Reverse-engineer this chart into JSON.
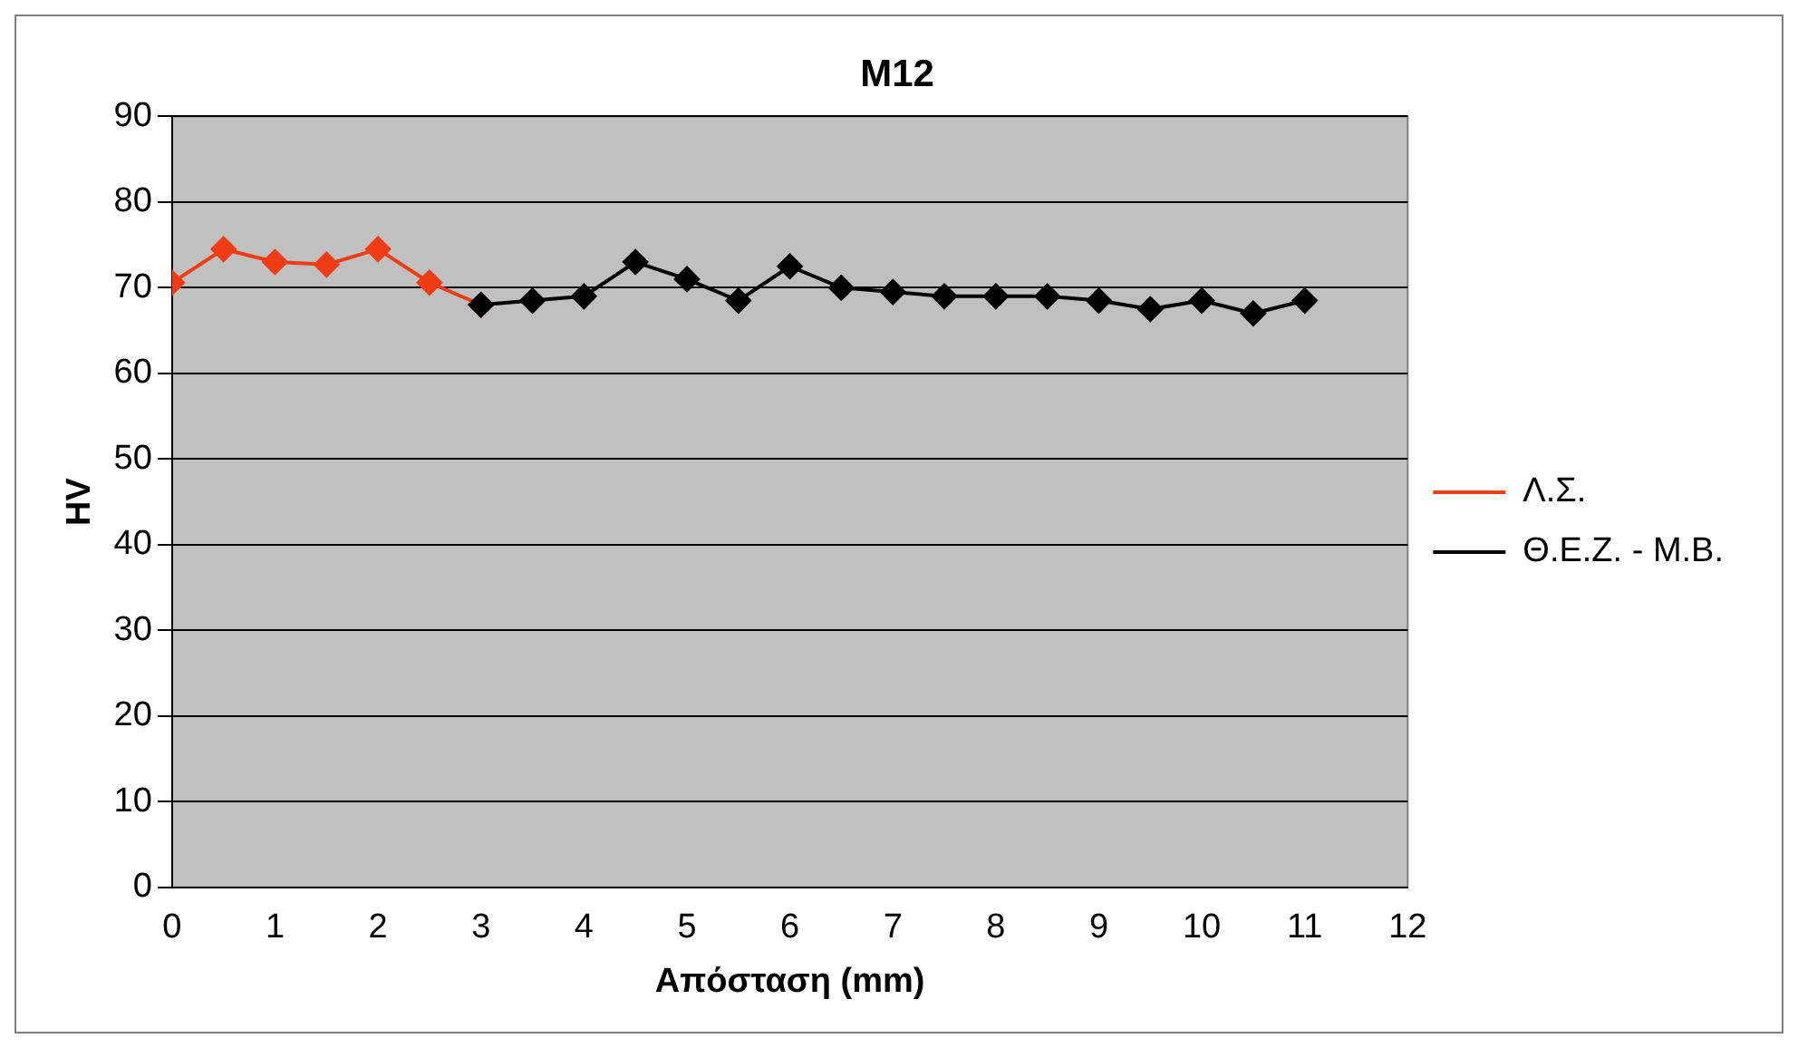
{
  "chart_data": {
    "type": "line",
    "title": "M12",
    "xlabel": "Απόσταση (mm)",
    "ylabel": "HV",
    "xlim": [
      0,
      12
    ],
    "xticks": [
      0,
      1,
      2,
      3,
      4,
      5,
      6,
      7,
      8,
      9,
      10,
      11,
      12
    ],
    "ylim": [
      0,
      90
    ],
    "yticks": [
      0,
      10,
      20,
      30,
      40,
      50,
      60,
      70,
      80,
      90
    ],
    "grid": "y",
    "legend": "right",
    "marker": "diamond",
    "series": [
      {
        "name": "Λ.Σ.",
        "color": "#f03c14",
        "x": [
          0,
          0.5,
          1,
          1.5,
          2,
          2.5,
          3
        ],
        "values": [
          70.6,
          74.5,
          73,
          72.7,
          74.5,
          70.6,
          68
        ]
      },
      {
        "name": "Θ.Ε.Ζ. - Μ.Β.",
        "color": "#000000",
        "x": [
          3,
          3.5,
          4,
          4.5,
          5,
          5.5,
          6,
          6.5,
          7,
          7.5,
          8,
          8.5,
          9,
          9.5,
          10,
          10.5,
          11
        ],
        "values": [
          68,
          68.5,
          69,
          73,
          71,
          68.5,
          72.5,
          70,
          69.5,
          69,
          69,
          69,
          68.5,
          67.5,
          68.5,
          67,
          68.5
        ]
      }
    ]
  }
}
